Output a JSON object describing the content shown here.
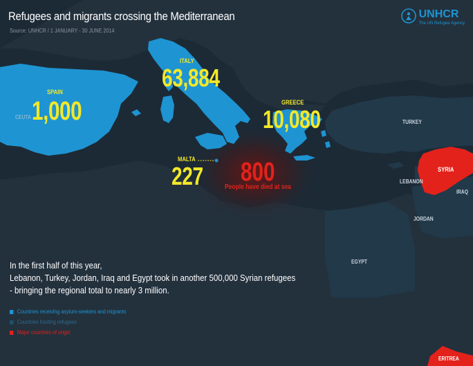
{
  "header": {
    "title": "Refugees and migrants crossing the Mediterranean",
    "source": "Source: UNHCR / 1 JANUARY - 30 JUNE 2014"
  },
  "logo": {
    "name": "UNHCR",
    "tagline": "The UN Refugee Agency",
    "color": "#1e94d2"
  },
  "destinations": [
    {
      "country": "SPAIN",
      "count": "1,000"
    },
    {
      "country": "ITALY",
      "count": "63,884"
    },
    {
      "country": "GREECE",
      "count": "10,080"
    },
    {
      "country": "MALTA",
      "count": "227"
    }
  ],
  "deaths": {
    "count": "800",
    "note": "People have died at sea"
  },
  "map_labels": {
    "turkey": "TURKEY",
    "lebanon": "LEBANON",
    "iraq": "IRAQ",
    "jordan": "JORDAN",
    "egypt": "EGYPT",
    "syria": "SYRIA",
    "eritrea": "ERITREA",
    "spain_region": "CEUTA"
  },
  "body_text": {
    "line1": "In the first half of this year,",
    "line2": "Lebanon, Turkey, Jordan, Iraq and Egypt took in another 500,000 Syrian refugees",
    "line3": "- bringing the regional total to nearly 3 million."
  },
  "legend": [
    {
      "label": "Countries receiving asylum-seekers and migrants",
      "color": "#1e94d2"
    },
    {
      "label": "Countries hosting refugees",
      "color": "#21506b"
    },
    {
      "label": "Major countries of origin",
      "color": "#e3221b"
    }
  ],
  "colors": {
    "background": "#1c2a36",
    "land_other": "#23313d",
    "receiving": "#1e94d2",
    "hosting": "#22394a",
    "origin": "#e3221b",
    "highlight_number": "#f2e82a"
  }
}
